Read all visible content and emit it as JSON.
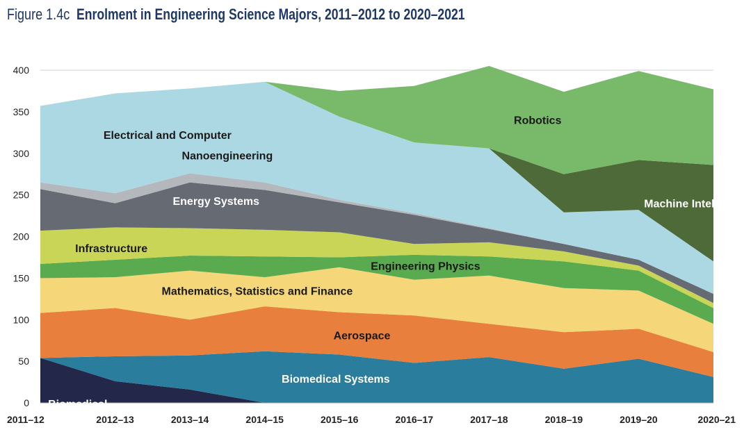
{
  "figure_label": "Figure 1.4c",
  "figure_title": "Enrolment in Engineering Science Majors, 2011–2012 to 2020–2021",
  "chart_data": {
    "type": "area",
    "stacked": true,
    "categories": [
      "2011–12",
      "2012–13",
      "2013–14",
      "2014–15",
      "2015–16",
      "2016–17",
      "2017–18",
      "2018–19",
      "2019–20",
      "2020–21"
    ],
    "ylim": [
      0,
      400
    ],
    "yticks": [
      0,
      50,
      100,
      150,
      200,
      250,
      300,
      350,
      400
    ],
    "grid": "horizontal",
    "series": [
      {
        "name": "Biomedical",
        "color": "#23284a",
        "values": [
          54,
          26,
          16,
          0,
          0,
          0,
          0,
          0,
          0,
          0
        ]
      },
      {
        "name": "Biomedical Systems",
        "color": "#2a7d9c",
        "values": [
          0,
          30,
          41,
          62,
          58,
          48,
          55,
          41,
          53,
          31
        ]
      },
      {
        "name": "Aerospace",
        "color": "#e97f3d",
        "values": [
          54,
          58,
          43,
          54,
          51,
          57,
          40,
          44,
          36,
          30
        ]
      },
      {
        "name": "Mathematics, Statistics and Finance",
        "color": "#f5d678",
        "values": [
          42,
          37,
          59,
          35,
          54,
          43,
          58,
          53,
          46,
          34
        ]
      },
      {
        "name": "Engineering Physics",
        "color": "#5aab4f",
        "values": [
          17,
          21,
          18,
          25,
          12,
          30,
          23,
          32,
          24,
          19
        ]
      },
      {
        "name": "Infrastructure",
        "color": "#c9d556",
        "values": [
          40,
          39,
          33,
          32,
          30,
          13,
          17,
          12,
          6,
          6
        ]
      },
      {
        "name": "Energy Systems",
        "color": "#666b73",
        "values": [
          50,
          29,
          55,
          48,
          36,
          35,
          16,
          9,
          7,
          11
        ]
      },
      {
        "name": "Nanoengineering",
        "color": "#b4b7bb",
        "values": [
          8,
          12,
          11,
          9,
          3,
          2,
          1,
          0,
          0,
          0
        ]
      },
      {
        "name": "Electrical and Computer",
        "color": "#acd8e3",
        "values": [
          92,
          120,
          102,
          121,
          100,
          85,
          96,
          38,
          60,
          39
        ]
      },
      {
        "name": "Machine Intelligence",
        "color": "#4d6a38",
        "values": [
          0,
          0,
          0,
          0,
          0,
          0,
          0,
          46,
          60,
          116
        ]
      },
      {
        "name": "Robotics",
        "color": "#78b96a",
        "values": [
          0,
          0,
          0,
          0,
          31,
          68,
          99,
          99,
          107,
          91
        ]
      }
    ],
    "labels": [
      {
        "series": "Electrical and Computer",
        "text": "Electrical and Computer",
        "color": "#1a1a1a"
      },
      {
        "series": "Nanoengineering",
        "text": "Nanoengineering",
        "color": "#1a1a1a"
      },
      {
        "series": "Energy Systems",
        "text": "Energy Systems",
        "color": "#ffffff"
      },
      {
        "series": "Infrastructure",
        "text": "Infrastructure",
        "color": "#1a1a1a"
      },
      {
        "series": "Engineering Physics",
        "text": "Engineering Physics",
        "color": "#1a1a1a"
      },
      {
        "series": "Mathematics, Statistics and Finance",
        "text": "Mathematics, Statistics and Finance",
        "color": "#1a1a1a"
      },
      {
        "series": "Aerospace",
        "text": "Aerospace",
        "color": "#1a1a1a"
      },
      {
        "series": "Biomedical Systems",
        "text": "Biomedical Systems",
        "color": "#ffffff"
      },
      {
        "series": "Biomedical",
        "text": "Biomedical",
        "color": "#ffffff"
      },
      {
        "series": "Robotics",
        "text": "Robotics",
        "color": "#1a1a1a"
      },
      {
        "series": "Machine Intelligence",
        "text": "Machine Intelligence",
        "color": "#ffffff"
      }
    ]
  }
}
